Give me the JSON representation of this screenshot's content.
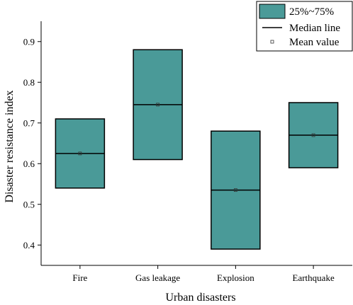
{
  "chart_data": {
    "type": "box",
    "xlabel": "Urban disasters",
    "ylabel": "Disaster resistance index",
    "ylim": [
      0.35,
      0.95
    ],
    "yticks": [
      0.4,
      0.5,
      0.6,
      0.7,
      0.8,
      0.9
    ],
    "ytick_labels": [
      "0.4",
      "0.5",
      "0.6",
      "0.7",
      "0.8",
      "0.9"
    ],
    "categories": [
      "Fire",
      "Gas leakage",
      "Explosion",
      "Earthquake"
    ],
    "boxes": [
      {
        "category": "Fire",
        "q1": 0.54,
        "median": 0.625,
        "q3": 0.71,
        "mean": 0.625
      },
      {
        "category": "Gas leakage",
        "q1": 0.61,
        "median": 0.745,
        "q3": 0.88,
        "mean": 0.745
      },
      {
        "category": "Explosion",
        "q1": 0.39,
        "median": 0.535,
        "q3": 0.68,
        "mean": 0.535
      },
      {
        "category": "Earthquake",
        "q1": 0.59,
        "median": 0.67,
        "q3": 0.75,
        "mean": 0.67
      }
    ],
    "legend": {
      "position": "top-right",
      "items": [
        "25%~75%",
        "Median line",
        "Mean value"
      ]
    },
    "box_color": "#4a9a98",
    "line_color": "#000000",
    "grid": false
  }
}
